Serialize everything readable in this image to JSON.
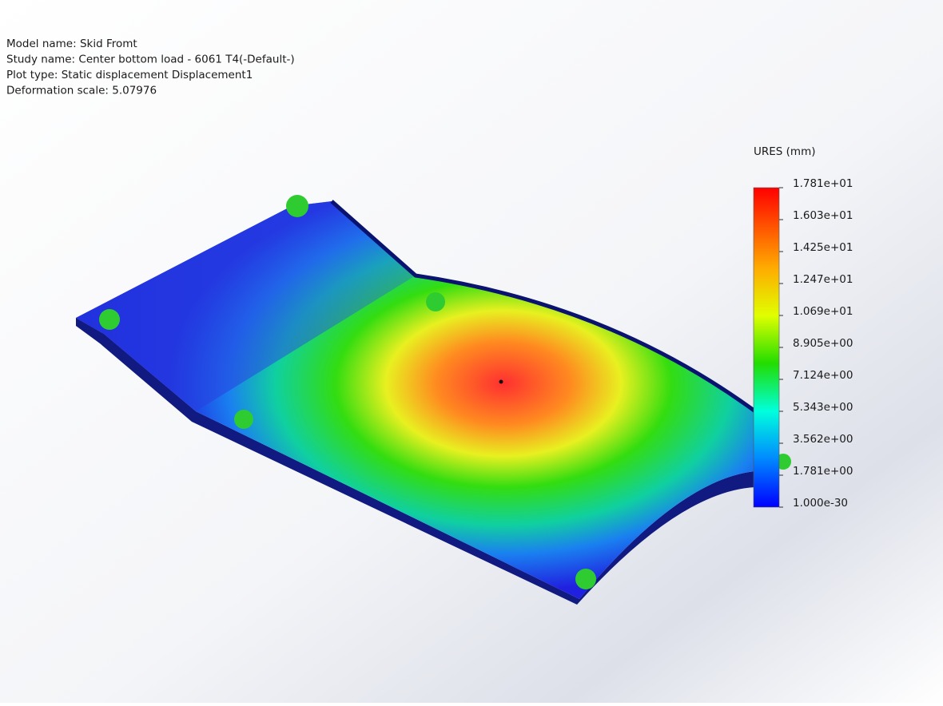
{
  "info": [
    "Model name: Skid Fromt",
    "Study name: Center bottom load - 6061 T4(-Default-)",
    "Plot type: Static displacement Displacement1",
    "Deformation scale: 5.07976"
  ],
  "legend": {
    "title": "URES (mm)",
    "labels": [
      "1.781e+01",
      "1.603e+01",
      "1.425e+01",
      "1.247e+01",
      "1.069e+01",
      "8.905e+00",
      "7.124e+00",
      "5.343e+00",
      "3.562e+00",
      "1.781e+00",
      "1.000e-30"
    ]
  }
}
